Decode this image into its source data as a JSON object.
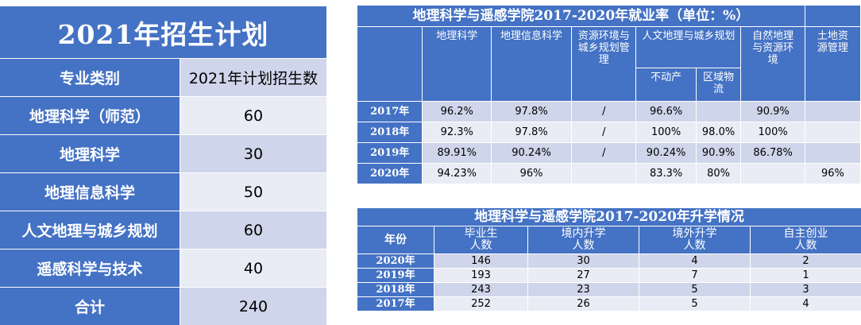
{
  "plan": {
    "title": "2021年招生计划",
    "col_major": "专业类别",
    "col_count": "2021年计划招生数",
    "rows": [
      {
        "major": "地理科学（师范）",
        "count": "60"
      },
      {
        "major": "地理科学",
        "count": "30"
      },
      {
        "major": "地理信息科学",
        "count": "50"
      },
      {
        "major": "人文地理与城乡规划",
        "count": "60"
      },
      {
        "major": "遥感科学与技术",
        "count": "40"
      },
      {
        "major": "合计",
        "count": "240"
      }
    ]
  },
  "employment": {
    "title": "地理科学与遥感学院2017-2020年就业率（单位：%）",
    "headers": {
      "geo": "地理科学",
      "gis": "地理信息科学",
      "resource": "资源环境与城乡规划管理",
      "human": "人文地理与城乡规划",
      "realestate": "不动产",
      "logistics": "区域物流",
      "natural": "自然地理与资源环境",
      "land": "土地资源管理"
    },
    "rows": [
      {
        "year": "2017年",
        "geo": "96.2%",
        "gis": "97.8%",
        "resource": "/",
        "realestate": "96.6%",
        "logistics": "",
        "natural": "90.9%",
        "land": ""
      },
      {
        "year": "2018年",
        "geo": "92.3%",
        "gis": "97.8%",
        "resource": "/",
        "realestate": "100%",
        "logistics": "98.0%",
        "natural": "100%",
        "land": ""
      },
      {
        "year": "2019年",
        "geo": "89.91%",
        "gis": "90.24%",
        "resource": "/",
        "realestate": "90.24%",
        "logistics": "90.9%",
        "natural": "86.78%",
        "land": ""
      },
      {
        "year": "2020年",
        "geo": "94.23%",
        "gis": "96%",
        "resource": "",
        "realestate": "83.3%",
        "logistics": "80%",
        "natural": "",
        "land": "96%"
      }
    ]
  },
  "further_study": {
    "title": "地理科学与遥感学院2017-2020年升学情况",
    "headers": {
      "year": "年份",
      "graduates": "毕业生人数",
      "domestic": "境内升学人数",
      "abroad": "境外升学人数",
      "startup": "自主创业人数"
    },
    "rows": [
      {
        "year": "2020年",
        "graduates": "146",
        "domestic": "30",
        "abroad": "4",
        "startup": "2"
      },
      {
        "year": "2019年",
        "graduates": "193",
        "domestic": "27",
        "abroad": "7",
        "startup": "1"
      },
      {
        "year": "2018年",
        "graduates": "243",
        "domestic": "23",
        "abroad": "5",
        "startup": "3"
      },
      {
        "year": "2017年",
        "graduates": "252",
        "domestic": "26",
        "abroad": "5",
        "startup": "4"
      }
    ]
  }
}
